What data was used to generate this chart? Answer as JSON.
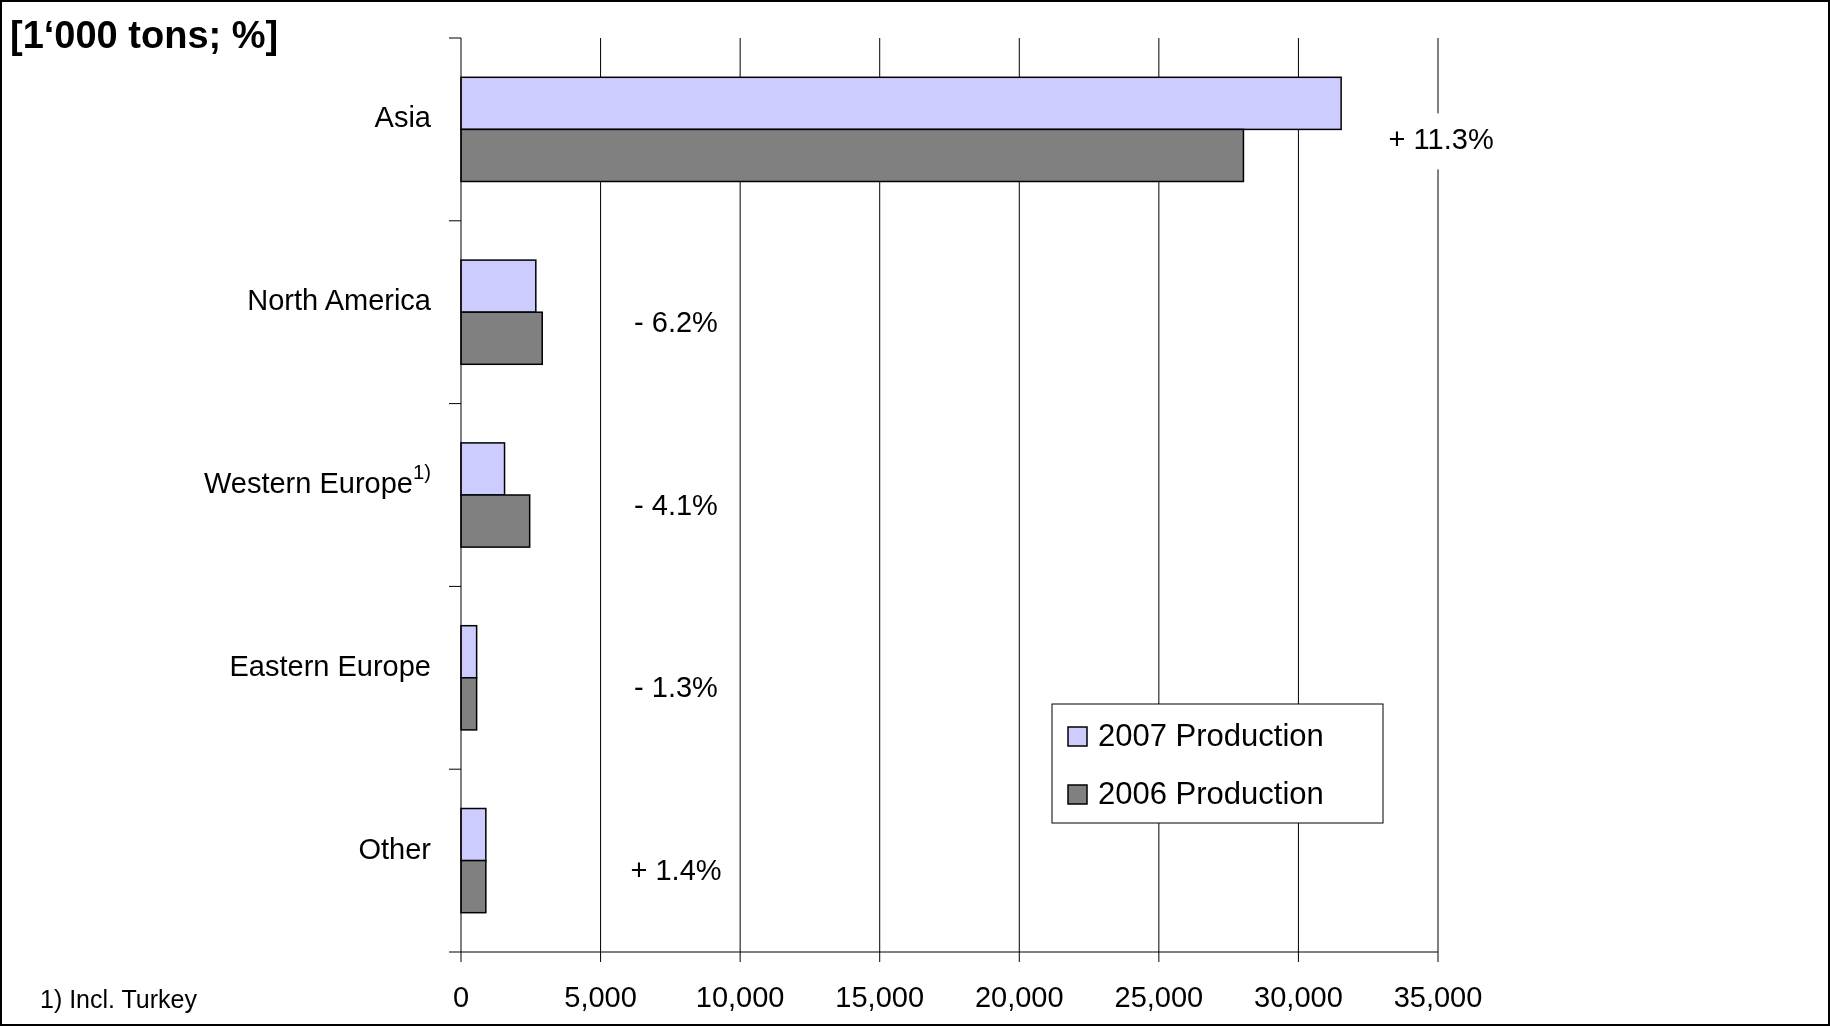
{
  "chart_data": {
    "type": "bar",
    "orientation": "horizontal",
    "title": "[1‘000 tons; %]",
    "categories": [
      "Asia",
      "North America",
      "Western Europe$^{1)}$",
      "Eastern Europe",
      "Other"
    ],
    "series": [
      {
        "name": "2007 Production",
        "color": "#ccccff",
        "values": [
          31530,
          2680,
          1560,
          560,
          890
        ]
      },
      {
        "name": "2006 Production",
        "color": "#808080",
        "values": [
          28030,
          2910,
          2460,
          560,
          890
        ]
      }
    ],
    "xlim": [
      0,
      35000
    ],
    "xticks": [
      0,
      {
        "value": 5000,
        "label": "5,000"
      },
      {
        "value": 10000,
        "label": "10,000"
      },
      {
        "value": 15000,
        "label": "15,000"
      },
      {
        "value": 20000,
        "label": "20,000"
      },
      {
        "value": 25000,
        "label": "25,000"
      },
      {
        "value": 30000,
        "label": "30,000"
      },
      {
        "value": 35000,
        "label": "35,000"
      }
    ],
    "grid": "x",
    "legend": "bottom right",
    "annotations": [
      "+ 11.3%",
      "- 6.2%",
      "- 4.1%",
      "- 1.3%",
      "+ 1.4%",
      "1) Incl. Turkey"
    ]
  }
}
